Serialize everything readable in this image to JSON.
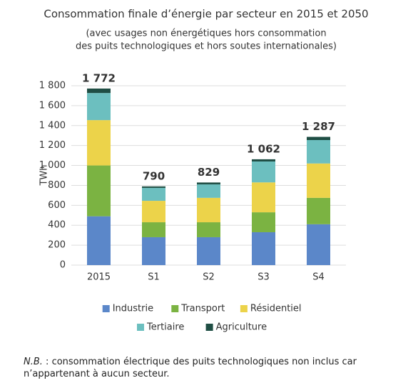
{
  "chart_data": {
    "type": "stacked_bar",
    "title": "Consommation finale d’énergie par secteur en 2015 et 2050",
    "subtitle": [
      "(avec usages non énergétiques hors consommation",
      "des puits technologiques et hors soutes internationales)"
    ],
    "y_label": "TWh",
    "categories": [
      "2015",
      "S1",
      "S2",
      "S3",
      "S4"
    ],
    "series": [
      {
        "name": "Industrie",
        "color": "#5b87c9",
        "values": [
          490,
          280,
          280,
          330,
          410
        ]
      },
      {
        "name": "Transport",
        "color": "#7bb342",
        "values": [
          510,
          150,
          150,
          200,
          265
        ]
      },
      {
        "name": "Résidentiel",
        "color": "#ecd34a",
        "values": [
          455,
          215,
          245,
          300,
          345
        ]
      },
      {
        "name": "Tertiaire",
        "color": "#6cbfbf",
        "values": [
          272,
          130,
          135,
          210,
          235
        ]
      },
      {
        "name": "Agriculture",
        "color": "#1f4e44",
        "values": [
          45,
          15,
          19,
          22,
          32
        ]
      }
    ],
    "totals": [
      1772,
      790,
      829,
      1062,
      1287
    ],
    "value_labels": [
      "1 772",
      "790",
      "829",
      "1 062",
      "1 287"
    ],
    "ylim": [
      0,
      1800
    ],
    "yticks": [
      0,
      200,
      400,
      600,
      800,
      {
        "value": 1000,
        "label": "1 000"
      },
      {
        "value": 1200,
        "label": "1 200"
      },
      {
        "value": 1400,
        "label": "1 400"
      },
      {
        "value": 1600,
        "label": "1 600"
      },
      {
        "value": 1800,
        "label": "1 800"
      }
    ],
    "grid": true,
    "note": {
      "lead": "N.B.",
      "text": " : consommation électrique des puits technologiques non inclus car n’appartenant à aucun secteur."
    }
  }
}
